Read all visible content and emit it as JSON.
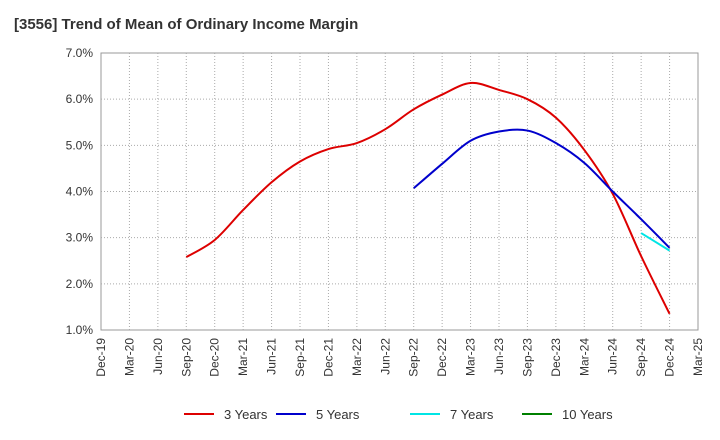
{
  "chart_data": {
    "type": "line",
    "title": "[3556]  Trend of Mean of Ordinary Income Margin",
    "xlabel": "",
    "ylabel": "",
    "x": [
      "Dec-19",
      "Mar-20",
      "Jun-20",
      "Sep-20",
      "Dec-20",
      "Mar-21",
      "Jun-21",
      "Sep-21",
      "Dec-21",
      "Mar-22",
      "Jun-22",
      "Sep-22",
      "Dec-22",
      "Mar-23",
      "Jun-23",
      "Sep-23",
      "Dec-23",
      "Mar-24",
      "Jun-24",
      "Sep-24",
      "Dec-24",
      "Mar-25"
    ],
    "ylim": [
      1.0,
      7.0
    ],
    "yticks": [
      "1.0%",
      "2.0%",
      "3.0%",
      "4.0%",
      "5.0%",
      "6.0%",
      "7.0%"
    ],
    "grid": true,
    "legend_position": "bottom",
    "series": [
      {
        "name": "3 Years",
        "color": "#dd0000",
        "values": [
          null,
          null,
          null,
          2.58,
          2.95,
          3.6,
          4.2,
          4.65,
          4.92,
          5.05,
          5.35,
          5.78,
          6.1,
          6.35,
          6.2,
          6.0,
          5.6,
          4.9,
          3.95,
          2.6,
          1.35,
          null
        ]
      },
      {
        "name": "5 Years",
        "color": "#0000cc",
        "values": [
          null,
          null,
          null,
          null,
          null,
          null,
          null,
          null,
          null,
          null,
          null,
          4.07,
          4.6,
          5.1,
          5.3,
          5.32,
          5.05,
          4.62,
          4.0,
          3.4,
          2.78,
          null
        ]
      },
      {
        "name": "7 Years",
        "color": "#00e5e5",
        "values": [
          null,
          null,
          null,
          null,
          null,
          null,
          null,
          null,
          null,
          null,
          null,
          null,
          null,
          null,
          null,
          null,
          null,
          null,
          null,
          3.1,
          2.72,
          null
        ]
      },
      {
        "name": "10 Years",
        "color": "#008000",
        "values": [
          null,
          null,
          null,
          null,
          null,
          null,
          null,
          null,
          null,
          null,
          null,
          null,
          null,
          null,
          null,
          null,
          null,
          null,
          null,
          null,
          null,
          null
        ]
      }
    ]
  }
}
